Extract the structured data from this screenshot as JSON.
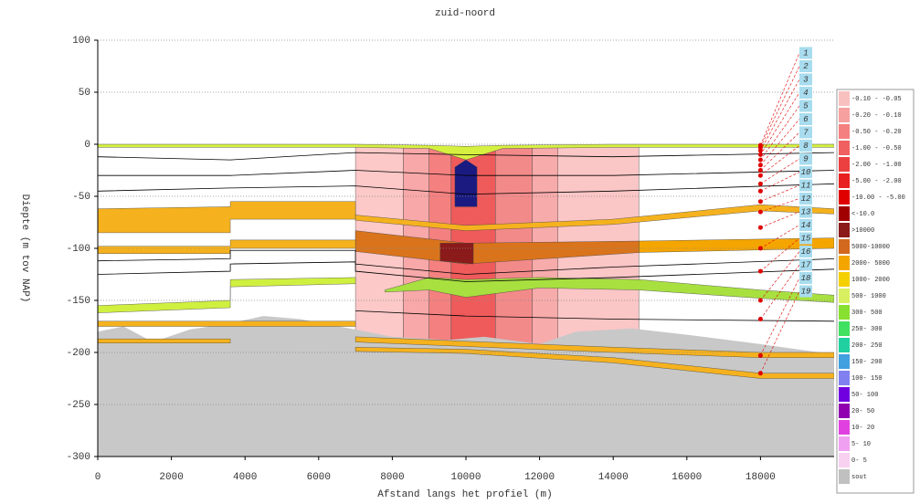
{
  "chart_data": {
    "type": "section",
    "title": "zuid-noord",
    "xlabel": "Afstand langs het profiel (m)",
    "ylabel": "Diepte (m tov NAP)",
    "xlim": [
      0,
      20000
    ],
    "ylim": [
      -300,
      100
    ],
    "xticks": [
      0,
      2000,
      4000,
      6000,
      8000,
      10000,
      12000,
      14000,
      16000,
      18000
    ],
    "yticks": [
      100,
      50,
      0,
      -50,
      -100,
      -150,
      -200,
      -250,
      -300
    ],
    "grid": true,
    "regions": [
      {
        "color": "#fcc8c8",
        "x": [
          7000,
          8300,
          8300,
          7000
        ],
        "y": [
          -2,
          -2,
          -195,
          -195
        ]
      },
      {
        "color": "#f8a8a8",
        "x": [
          8300,
          9000,
          9000,
          8300
        ],
        "y": [
          -2,
          -2,
          -195,
          -195
        ]
      },
      {
        "color": "#f48080",
        "x": [
          9000,
          9600,
          9600,
          9000
        ],
        "y": [
          -2,
          -2,
          -195,
          -195
        ]
      },
      {
        "color": "#ef5b5b",
        "x": [
          9600,
          10800,
          10800,
          9600
        ],
        "y": [
          -2,
          -2,
          -195,
          -195
        ]
      },
      {
        "color": "#f38a8a",
        "x": [
          10800,
          11800,
          11800,
          10800
        ],
        "y": [
          -2,
          -2,
          -195,
          -195
        ]
      },
      {
        "color": "#f7abab",
        "x": [
          11800,
          12500,
          12500,
          11800
        ],
        "y": [
          -2,
          -2,
          -195,
          -195
        ]
      },
      {
        "color": "#fbc6c6",
        "x": [
          12500,
          14700,
          14700,
          12500
        ],
        "y": [
          -2,
          -2,
          -195,
          -195
        ]
      },
      {
        "color": "#c8c8c8",
        "x": [
          0,
          700,
          1500,
          2500,
          3600,
          4500,
          5500,
          7000,
          8000,
          9500,
          10500,
          12000,
          13000,
          14500,
          16000,
          18000,
          20000,
          20000,
          0
        ],
        "y": [
          -180,
          -175,
          -190,
          -178,
          -172,
          -165,
          -168,
          -178,
          -185,
          -188,
          -185,
          -192,
          -180,
          -177,
          -183,
          -192,
          -202,
          -300,
          -300
        ]
      },
      {
        "color": "#d6f040",
        "x": [
          0,
          7000,
          9000,
          10000,
          11000,
          14000,
          20000,
          20000,
          14000,
          11000,
          10000,
          9000,
          7000,
          0
        ],
        "y": [
          0,
          0,
          -1,
          -2,
          -1,
          0,
          0,
          -3,
          -3,
          -4,
          -15,
          -4,
          -3,
          -3
        ]
      },
      {
        "color": "#1a1a80",
        "x": [
          9700,
          10000,
          10300,
          10300,
          9700
        ],
        "y": [
          -22,
          -15,
          -22,
          -60,
          -60
        ]
      },
      {
        "color": "#f5b21e",
        "x": [
          0,
          3600,
          3600,
          7000,
          7000,
          3600,
          3600,
          0
        ],
        "y": [
          -62,
          -60,
          -55,
          -55,
          -72,
          -72,
          -85,
          -85
        ]
      },
      {
        "color": "#f5b21e",
        "x": [
          7000,
          10000,
          14000,
          18000,
          20000,
          20000,
          18000,
          14000,
          10000,
          7000
        ],
        "y": [
          -68,
          -78,
          -72,
          -58,
          -62,
          -67,
          -64,
          -77,
          -83,
          -73
        ]
      },
      {
        "color": "#d9741c",
        "x": [
          7000,
          10000,
          14700,
          14700,
          10000,
          7000
        ],
        "y": [
          -83,
          -95,
          -93,
          -104,
          -115,
          -103
        ]
      },
      {
        "color": "#f5a500",
        "x": [
          14700,
          20000,
          20000,
          14700
        ],
        "y": [
          -93,
          -90,
          -100,
          -104
        ]
      },
      {
        "color": "#8b1a1a",
        "x": [
          9300,
          10200,
          10200,
          9300
        ],
        "y": [
          -95,
          -95,
          -115,
          -112
        ]
      },
      {
        "color": "#f5b21e",
        "x": [
          0,
          3600,
          3600,
          7000,
          7000,
          3600,
          3600,
          0
        ],
        "y": [
          -98,
          -98,
          -92,
          -92,
          -100,
          -100,
          -105,
          -105
        ]
      },
      {
        "color": "#a8e040",
        "x": [
          7800,
          9000,
          10000,
          12000,
          14700,
          18000,
          20000,
          20000,
          18000,
          14700,
          12000,
          10000,
          9000,
          7800
        ],
        "y": [
          -140,
          -128,
          -130,
          -128,
          -130,
          -140,
          -145,
          -152,
          -148,
          -140,
          -138,
          -147,
          -140,
          -142
        ]
      },
      {
        "color": "#d0f040",
        "x": [
          0,
          3600,
          3600,
          7000,
          7000,
          3600,
          3600,
          0
        ],
        "y": [
          -155,
          -150,
          -130,
          -128,
          -134,
          -137,
          -157,
          -162
        ]
      },
      {
        "color": "#f5b21e",
        "x": [
          0,
          7000,
          7000,
          0
        ],
        "y": [
          -170,
          -170,
          -175,
          -175
        ]
      },
      {
        "color": "#f5b21e",
        "x": [
          7000,
          14000,
          18000,
          20000,
          20000,
          18000,
          14000,
          7000
        ],
        "y": [
          -185,
          -195,
          -200,
          -200,
          -205,
          -205,
          -200,
          -190
        ]
      },
      {
        "color": "#f5b21e",
        "x": [
          0,
          3600,
          3600,
          0
        ],
        "y": [
          -187,
          -187,
          -191,
          -191
        ]
      },
      {
        "color": "#f5b21e",
        "x": [
          7000,
          10000,
          14000,
          18000,
          20000,
          20000,
          18000,
          14000,
          10000,
          7000
        ],
        "y": [
          -195,
          -197,
          -205,
          -220,
          -220,
          -225,
          -225,
          -210,
          -201,
          -199
        ]
      }
    ],
    "lines": [
      {
        "color": "#000000",
        "x": [
          0,
          3600,
          7000,
          10000,
          14000,
          20000
        ],
        "y": [
          -12,
          -15,
          -8,
          -10,
          -12,
          -8
        ]
      },
      {
        "color": "#000000",
        "x": [
          0,
          3600,
          7000,
          10000,
          14000,
          20000
        ],
        "y": [
          -30,
          -30,
          -25,
          -30,
          -30,
          -25
        ]
      },
      {
        "color": "#000000",
        "x": [
          0,
          3600,
          7000,
          10000,
          14000,
          20000
        ],
        "y": [
          -45,
          -42,
          -40,
          -48,
          -45,
          -38
        ]
      },
      {
        "color": "#000000",
        "x": [
          0,
          3600,
          3600,
          7000,
          7000,
          10000,
          14000,
          20000
        ],
        "y": [
          -112,
          -110,
          -102,
          -102,
          -115,
          -125,
          -118,
          -110
        ]
      },
      {
        "color": "#000000",
        "x": [
          0,
          3600,
          3600,
          7000,
          7000,
          10000,
          14000,
          20000
        ],
        "y": [
          -125,
          -122,
          -115,
          -113,
          -122,
          -132,
          -128,
          -120
        ]
      },
      {
        "color": "#000000",
        "x": [
          7000,
          10000,
          14000,
          20000
        ],
        "y": [
          -160,
          -165,
          -168,
          -170
        ]
      }
    ],
    "boreholes": {
      "x": 18000,
      "color": "#e00000",
      "labels": [
        "1",
        "2",
        "3",
        "4",
        "5",
        "6",
        "7",
        "8",
        "9",
        "10",
        "11",
        "12",
        "13",
        "14",
        "15",
        "16",
        "17",
        "18",
        "19"
      ],
      "depths": [
        -1,
        -3,
        -6,
        -10,
        -15,
        -20,
        -25,
        -30,
        -38,
        -45,
        -55,
        -65,
        -80,
        -100,
        -122,
        -150,
        -168,
        -203,
        -220
      ]
    },
    "legend": [
      {
        "label": "-0.10 - -0.05",
        "color": "#f9c0c0"
      },
      {
        "label": "-0.20 - -0.10",
        "color": "#f7a0a0"
      },
      {
        "label": "-0.50 - -0.20",
        "color": "#f48080"
      },
      {
        "label": "-1.00 - -0.50",
        "color": "#f06060"
      },
      {
        "label": "-2.00 - -1.00",
        "color": "#ec4040"
      },
      {
        "label": "-5.00 - -2.00",
        "color": "#e82020"
      },
      {
        "label": "-10.00 - -5.00",
        "color": "#e00000"
      },
      {
        "label": "<-10.0",
        "color": "#a00000"
      },
      {
        "label": ">10000",
        "color": "#8b1a1a"
      },
      {
        "label": "5000-10000",
        "color": "#d2691e"
      },
      {
        "label": "2000- 5000",
        "color": "#f5a500"
      },
      {
        "label": "1000- 2000",
        "color": "#f5d000"
      },
      {
        "label": "500- 1000",
        "color": "#d8f060"
      },
      {
        "label": "300- 500",
        "color": "#88e030"
      },
      {
        "label": "250- 300",
        "color": "#40e060"
      },
      {
        "label": "200- 250",
        "color": "#20d0a0"
      },
      {
        "label": "150- 200",
        "color": "#40a0e0"
      },
      {
        "label": "100- 150",
        "color": "#8080f0"
      },
      {
        "label": "50- 100",
        "color": "#7000e0"
      },
      {
        "label": "20- 50",
        "color": "#9000b0"
      },
      {
        "label": "10- 20",
        "color": "#e040e0"
      },
      {
        "label": "5- 10",
        "color": "#f0a0f0"
      },
      {
        "label": "0- 5",
        "color": "#f8d0f0"
      },
      {
        "label": "sout",
        "color": "#c0c0c0"
      }
    ]
  }
}
